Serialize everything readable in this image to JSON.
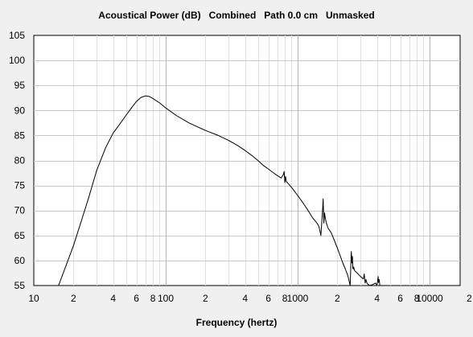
{
  "chart_data": {
    "type": "line",
    "title": "Acoustical Power (dB)   Combined   Path 0.0 cm   Unmasked",
    "xlabel": "Frequency (hertz)",
    "ylabel": "",
    "x_scale": "log",
    "xlim": [
      10,
      20000
    ],
    "ylim": [
      55,
      105
    ],
    "grid": true,
    "y_ticks": [
      "55",
      "60",
      "65",
      "70",
      "75",
      "80",
      "85",
      "90",
      "95",
      "100",
      "105"
    ],
    "x_ticks": [
      {
        "value": 10,
        "label": "10"
      },
      {
        "value": 20,
        "label": "2"
      },
      {
        "value": 40,
        "label": "4"
      },
      {
        "value": 60,
        "label": "6"
      },
      {
        "value": 80,
        "label": "8"
      },
      {
        "value": 100,
        "label": "100"
      },
      {
        "value": 200,
        "label": "2"
      },
      {
        "value": 400,
        "label": "4"
      },
      {
        "value": 600,
        "label": "6"
      },
      {
        "value": 800,
        "label": "8"
      },
      {
        "value": 1000,
        "label": "1000"
      },
      {
        "value": 2000,
        "label": "2"
      },
      {
        "value": 4000,
        "label": "4"
      },
      {
        "value": 6000,
        "label": "6"
      },
      {
        "value": 8000,
        "label": "8"
      },
      {
        "value": 10000,
        "label": "10000"
      },
      {
        "value": 20000,
        "label": "2"
      }
    ],
    "series": [
      {
        "color": "#000000",
        "x": [
          15.4,
          17,
          20,
          23,
          26,
          30,
          35,
          40,
          45,
          50,
          55,
          60,
          65,
          70,
          75,
          80,
          90,
          100,
          120,
          150,
          200,
          250,
          300,
          350,
          400,
          450,
          500,
          550,
          600,
          650,
          700,
          750,
          780,
          790,
          800,
          810,
          820,
          860,
          900,
          950,
          1000,
          1100,
          1200,
          1300,
          1400,
          1450,
          1500,
          1540,
          1560,
          1580,
          1600,
          1620,
          1650,
          1700,
          1800,
          1900,
          2000,
          2100,
          2200,
          2300,
          2400,
          2500,
          2550,
          2580,
          2600,
          2620,
          2640,
          2660,
          2700,
          2800,
          3000,
          3150,
          3200,
          3250,
          3300,
          3350,
          3400,
          3500,
          3700,
          3900,
          4000,
          4080,
          4100,
          4150,
          4200
        ],
        "y": [
          55,
          58,
          63,
          68,
          72.5,
          78,
          82.5,
          85.5,
          87.3,
          89,
          90.5,
          91.8,
          92.6,
          92.9,
          92.8,
          92.4,
          91.5,
          90.5,
          89,
          87.5,
          86,
          85,
          84,
          83,
          82,
          81,
          80,
          79,
          78.3,
          77.6,
          77,
          76.5,
          77.2,
          77.8,
          75.6,
          76.8,
          75.8,
          75.2,
          74.6,
          73.8,
          73,
          71.5,
          70,
          68.5,
          67.5,
          66.8,
          65,
          69.5,
          72.3,
          67.5,
          69.5,
          68.5,
          67.5,
          66.5,
          65.5,
          64,
          62.5,
          61,
          59.5,
          58.3,
          57,
          55,
          61.8,
          59.5,
          60.8,
          58.5,
          58.3,
          58.7,
          58,
          57.6,
          56.8,
          56.3,
          57.3,
          55.5,
          56.2,
          55.5,
          55.3,
          55,
          55.2,
          55.5,
          55,
          56.8,
          55.6,
          56.2,
          55
        ]
      }
    ]
  }
}
